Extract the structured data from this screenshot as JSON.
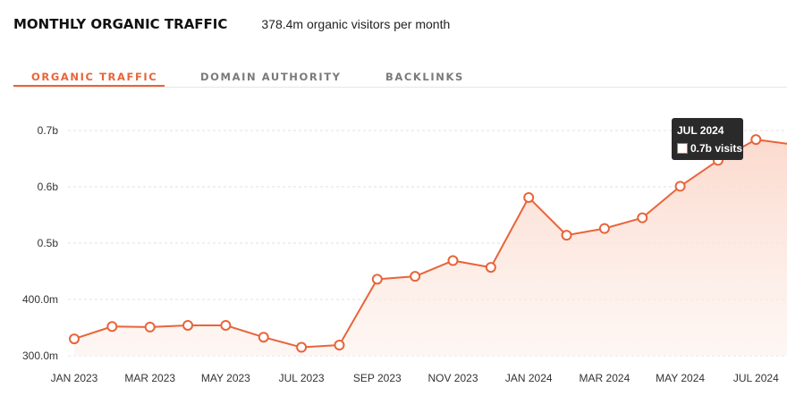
{
  "header": {
    "title": "MONTHLY ORGANIC TRAFFIC",
    "subtitle": "378.4m organic visitors per month"
  },
  "tabs": [
    {
      "label": "ORGANIC TRAFFIC",
      "active": true
    },
    {
      "label": "DOMAIN AUTHORITY",
      "active": false
    },
    {
      "label": "BACKLINKS",
      "active": false
    }
  ],
  "colors": {
    "accent": "#e8643a",
    "fill_top": "#fbd6c8",
    "grid": "#e2e2e2"
  },
  "tooltip": {
    "title": "JUL 2024",
    "value": "0.7b visits"
  },
  "chart_data": {
    "type": "area",
    "unit": "visits",
    "y_ticks": [
      {
        "value": 300000000,
        "label": "300.0m"
      },
      {
        "value": 400000000,
        "label": "400.0m"
      },
      {
        "value": 500000000,
        "label": "0.5b"
      },
      {
        "value": 600000000,
        "label": "0.6b"
      },
      {
        "value": 700000000,
        "label": "0.7b"
      }
    ],
    "ylim": [
      300000000,
      700000000
    ],
    "x_tick_labels": [
      "JAN 2023",
      "MAR 2023",
      "MAY 2023",
      "JUL 2023",
      "SEP 2023",
      "NOV 2023",
      "JAN 2024",
      "MAR 2024",
      "MAY 2024",
      "JUL 2024"
    ],
    "x": [
      "JAN 2023",
      "FEB 2023",
      "MAR 2023",
      "APR 2023",
      "MAY 2023",
      "JUN 2023",
      "JUL 2023",
      "AUG 2023",
      "SEP 2023",
      "OCT 2023",
      "NOV 2023",
      "DEC 2023",
      "JAN 2024",
      "FEB 2024",
      "MAR 2024",
      "APR 2024",
      "MAY 2024",
      "JUN 2024",
      "JUL 2024",
      "AUG 2024"
    ],
    "series": [
      {
        "values": [
          330000000,
          352000000,
          351000000,
          354000000,
          354000000,
          333000000,
          315000000,
          319000000,
          436000000,
          441000000,
          469000000,
          457000000,
          581000000,
          514000000,
          526000000,
          545000000,
          601000000,
          647000000,
          684000000,
          675000000
        ]
      }
    ],
    "highlight": {
      "x": "JUL 2024",
      "label": "0.7b visits"
    },
    "grid": true,
    "legend": "none"
  }
}
